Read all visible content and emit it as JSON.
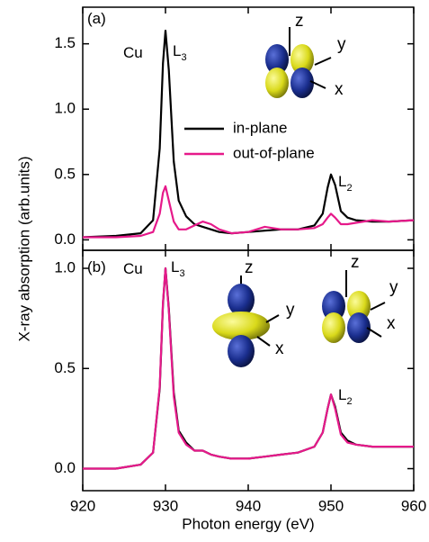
{
  "chart_data": [
    {
      "type": "line",
      "ylabel": "X-ray absorption (arb.units)",
      "annotations": [
        {
          "text": "(a)"
        },
        {
          "text": "Cu"
        },
        {
          "text": "L",
          "sub": "3"
        },
        {
          "text": "L",
          "sub": "2"
        }
      ],
      "inset_labels": [
        "z",
        "y",
        "x"
      ],
      "legend": "center right",
      "x": [
        920,
        924,
        927,
        928.5,
        929.3,
        929.7,
        930,
        930.4,
        931,
        931.6,
        932.5,
        933.5,
        934.5,
        935.5,
        936.5,
        938,
        940,
        942,
        944,
        946,
        948,
        949,
        949.6,
        950,
        950.5,
        951.2,
        952,
        953,
        955,
        957,
        960
      ],
      "series": [
        {
          "name": "in-plane",
          "color": "#000000",
          "values": [
            0.02,
            0.03,
            0.05,
            0.15,
            0.7,
            1.35,
            1.6,
            1.3,
            0.6,
            0.3,
            0.18,
            0.12,
            0.1,
            0.08,
            0.06,
            0.05,
            0.06,
            0.07,
            0.08,
            0.08,
            0.11,
            0.2,
            0.4,
            0.5,
            0.42,
            0.22,
            0.17,
            0.15,
            0.14,
            0.14,
            0.15
          ]
        },
        {
          "name": "out-of-plane",
          "color": "#e6198a",
          "values": [
            0.02,
            0.02,
            0.03,
            0.06,
            0.2,
            0.36,
            0.41,
            0.3,
            0.14,
            0.08,
            0.08,
            0.11,
            0.14,
            0.12,
            0.08,
            0.05,
            0.06,
            0.1,
            0.08,
            0.08,
            0.09,
            0.12,
            0.17,
            0.2,
            0.17,
            0.12,
            0.12,
            0.13,
            0.15,
            0.14,
            0.15
          ]
        }
      ],
      "xlim": [
        920,
        960
      ],
      "ylim": [
        -0.08,
        1.78
      ],
      "xticks": [
        920,
        930,
        940,
        950,
        960
      ],
      "yticks": [
        {
          "value": 0,
          "label": "0.0"
        },
        0.5,
        {
          "value": 1,
          "label": "1.0"
        },
        1.5
      ]
    },
    {
      "type": "line",
      "xlabel": "Photon energy (eV)",
      "annotations": [
        {
          "text": "(b)"
        },
        {
          "text": "Cu"
        },
        {
          "text": "L",
          "sub": "3"
        },
        {
          "text": "L",
          "sub": "2"
        }
      ],
      "inset_labels": [
        "z",
        "y",
        "x",
        "z",
        "y",
        "x"
      ],
      "x": [
        920,
        924,
        927,
        928.5,
        929.3,
        929.7,
        930,
        930.4,
        931,
        931.6,
        932.5,
        933.5,
        934.5,
        935.5,
        936.5,
        938,
        940,
        942,
        944,
        946,
        948,
        949,
        949.6,
        950,
        950.5,
        951.2,
        952,
        953,
        955,
        957,
        960
      ],
      "series": [
        {
          "color": "#000000",
          "values": [
            0.0,
            0.0,
            0.02,
            0.08,
            0.4,
            0.82,
            1.0,
            0.8,
            0.38,
            0.19,
            0.13,
            0.09,
            0.09,
            0.07,
            0.06,
            0.05,
            0.05,
            0.06,
            0.07,
            0.08,
            0.11,
            0.18,
            0.3,
            0.37,
            0.31,
            0.18,
            0.14,
            0.12,
            0.11,
            0.11,
            0.11
          ]
        },
        {
          "color": "#e6198a",
          "values": [
            0.0,
            0.0,
            0.02,
            0.08,
            0.41,
            0.83,
            1.0,
            0.79,
            0.36,
            0.18,
            0.12,
            0.09,
            0.09,
            0.07,
            0.06,
            0.05,
            0.05,
            0.06,
            0.07,
            0.08,
            0.11,
            0.18,
            0.3,
            0.37,
            0.3,
            0.17,
            0.13,
            0.12,
            0.11,
            0.11,
            0.11
          ]
        }
      ],
      "xlim": [
        920,
        960
      ],
      "ylim": [
        -0.11,
        1.09
      ],
      "xticks": [
        920,
        930,
        940,
        950,
        960
      ],
      "yticks": [
        {
          "value": 0,
          "label": "0.0"
        },
        0.5,
        {
          "value": 1,
          "label": "1.0"
        }
      ]
    }
  ]
}
